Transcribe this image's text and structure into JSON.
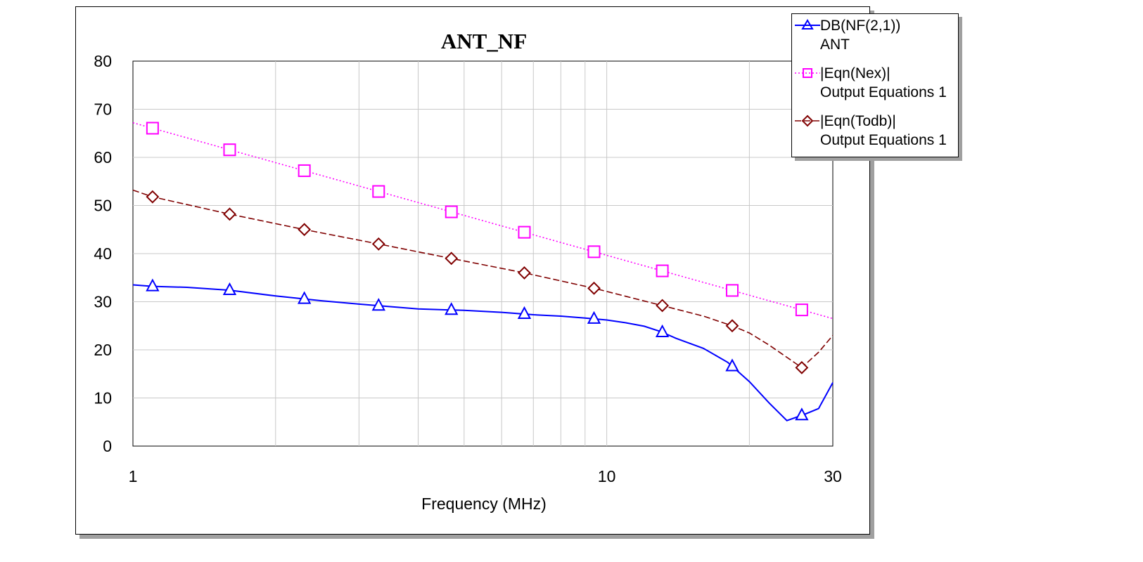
{
  "chart_data": {
    "type": "line",
    "title": "ANT_NF",
    "xlabel": "Frequency (MHz)",
    "ylabel": "",
    "x_scale": "log",
    "xlim": [
      1,
      30
    ],
    "ylim": [
      0,
      80
    ],
    "x_tick_labels": [
      "1",
      "10",
      "30"
    ],
    "x_ticks": [
      1,
      10,
      30
    ],
    "x_minor_grid": [
      2,
      3,
      4,
      5,
      6,
      7,
      8,
      9,
      20
    ],
    "y_ticks": [
      0,
      10,
      20,
      30,
      40,
      50,
      60,
      70,
      80
    ],
    "y_tick_labels": [
      "0",
      "10",
      "20",
      "30",
      "40",
      "50",
      "60",
      "70",
      "80"
    ],
    "grid": true,
    "legend_position": "top-right",
    "series": [
      {
        "name": "DB(NF(2,1))",
        "source": "ANT",
        "color": "#0000ff",
        "line_style": "solid",
        "marker": "triangle",
        "x": [
          1,
          1.1,
          1.3,
          1.6,
          2,
          2.5,
          3,
          4,
          5,
          6,
          7,
          8,
          9,
          10,
          11,
          12,
          13,
          14,
          16,
          18,
          20,
          22,
          24,
          26,
          28,
          30
        ],
        "y": [
          33.5,
          33.2,
          33.0,
          32.4,
          31.2,
          30.2,
          29.5,
          28.5,
          28.2,
          27.8,
          27.3,
          27.0,
          26.6,
          26.2,
          25.6,
          24.9,
          23.8,
          22.4,
          20.3,
          17.4,
          13.4,
          9.0,
          5.3,
          6.5,
          7.8,
          13.2
        ],
        "markers_at": [
          1.1,
          1.6,
          2.3,
          3.3,
          4.7,
          6.7,
          9.4,
          13.1,
          18.4,
          25.8
        ]
      },
      {
        "name": "|Eqn(Nex)|",
        "source": "Output Equations 1",
        "color": "#ff00ff",
        "line_style": "dotted",
        "marker": "square",
        "x": [
          1,
          30
        ],
        "y": [
          67.2,
          26.5
        ],
        "markers_at": [
          1.1,
          1.6,
          2.3,
          3.3,
          4.7,
          6.7,
          9.4,
          13.1,
          18.4,
          25.8
        ]
      },
      {
        "name": "|Eqn(Todb)|",
        "source": "Output Equations 1",
        "color": "#800000",
        "line_style": "dashed",
        "marker": "diamond",
        "x": [
          1,
          1.1,
          1.6,
          2.3,
          3.3,
          4.7,
          6.7,
          9.4,
          13.1,
          16,
          18.4,
          20,
          22,
          25.8,
          28,
          30
        ],
        "y": [
          53.2,
          51.8,
          48.2,
          45.0,
          42.0,
          39.0,
          36.0,
          32.8,
          29.2,
          27.0,
          25.0,
          23.5,
          21.0,
          16.3,
          19.5,
          23.0
        ],
        "markers_at": [
          1.1,
          1.6,
          2.3,
          3.3,
          4.7,
          6.7,
          9.4,
          13.1,
          18.4,
          25.8
        ]
      }
    ]
  }
}
